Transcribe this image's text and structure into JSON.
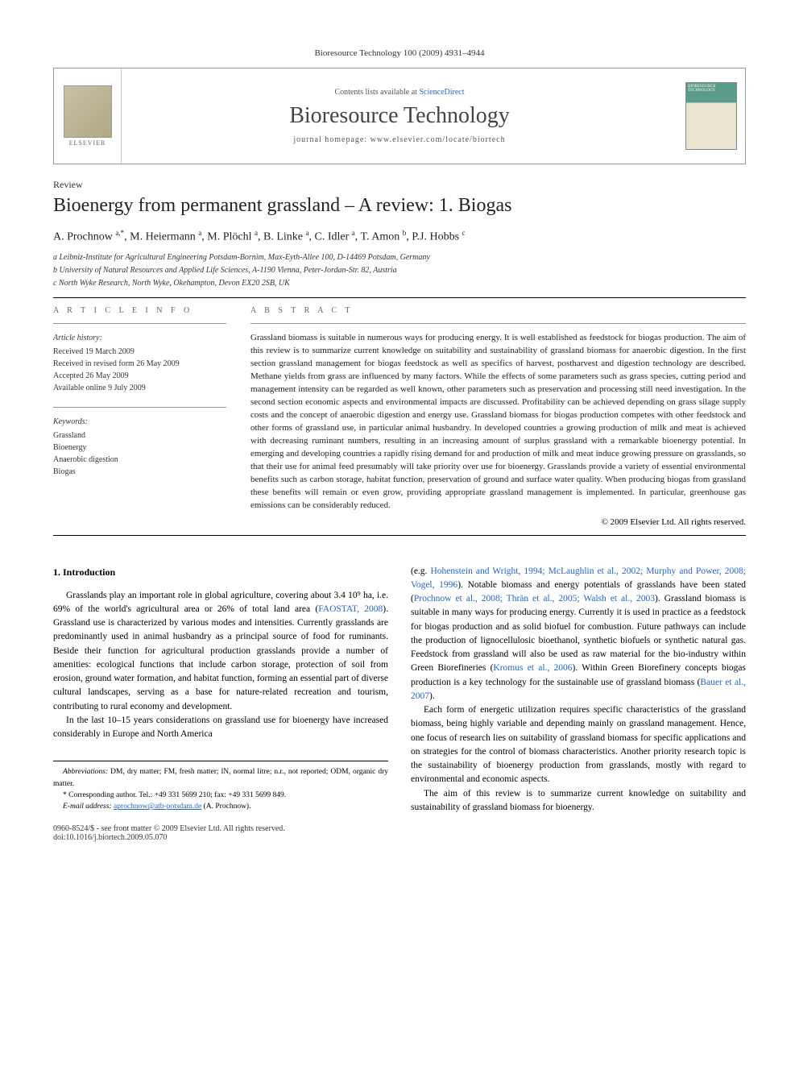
{
  "journal_ref": "Bioresource Technology 100 (2009) 4931–4944",
  "header": {
    "contents_prefix": "Contents lists available at ",
    "contents_link": "ScienceDirect",
    "journal_name": "Bioresource Technology",
    "homepage_prefix": "journal homepage: ",
    "homepage_url": "www.elsevier.com/locate/biortech",
    "publisher": "ELSEVIER",
    "cover_label": "BIORESOURCE TECHNOLOGY"
  },
  "article_type": "Review",
  "title": "Bioenergy from permanent grassland – A review: 1. Biogas",
  "authors_html": "A. Prochnow <sup>a,*</sup>, M. Heiermann <sup>a</sup>, M. Plöchl <sup>a</sup>, B. Linke <sup>a</sup>, C. Idler <sup>a</sup>, T. Amon <sup>b</sup>, P.J. Hobbs <sup>c</sup>",
  "affiliations": {
    "a": "a Leibniz-Institute for Agricultural Engineering Potsdam-Bornim, Max-Eyth-Allee 100, D-14469 Potsdam, Germany",
    "b": "b University of Natural Resources and Applied Life Sciences, A-1190 Vienna, Peter-Jordan-Str. 82, Austria",
    "c": "c North Wyke Research, North Wyke, Okehampton, Devon EX20 2SB, UK"
  },
  "article_info": {
    "label": "A R T I C L E   I N F O",
    "history_label": "Article history:",
    "history": [
      "Received 19 March 2009",
      "Received in revised form 26 May 2009",
      "Accepted 26 May 2009",
      "Available online 9 July 2009"
    ],
    "keywords_label": "Keywords:",
    "keywords": [
      "Grassland",
      "Bioenergy",
      "Anaerobic digestion",
      "Biogas"
    ]
  },
  "abstract": {
    "label": "A B S T R A C T",
    "text": "Grassland biomass is suitable in numerous ways for producing energy. It is well established as feedstock for biogas production. The aim of this review is to summarize current knowledge on suitability and sustainability of grassland biomass for anaerobic digestion. In the first section grassland management for biogas feedstock as well as specifics of harvest, postharvest and digestion technology are described. Methane yields from grass are influenced by many factors. While the effects of some parameters such as grass species, cutting period and management intensity can be regarded as well known, other parameters such as preservation and processing still need investigation. In the second section economic aspects and environmental impacts are discussed. Profitability can be achieved depending on grass silage supply costs and the concept of anaerobic digestion and energy use. Grassland biomass for biogas production competes with other feedstock and other forms of grassland use, in particular animal husbandry. In developed countries a growing production of milk and meat is achieved with decreasing ruminant numbers, resulting in an increasing amount of surplus grassland with a remarkable bioenergy potential. In emerging and developing countries a rapidly rising demand for and production of milk and meat induce growing pressure on grasslands, so that their use for animal feed presumably will take priority over use for bioenergy. Grasslands provide a variety of essential environmental benefits such as carbon storage, habitat function, preservation of ground and surface water quality. When producing biogas from grassland these benefits will remain or even grow, providing appropriate grassland management is implemented. In particular, greenhouse gas emissions can be considerably reduced.",
    "copyright": "© 2009 Elsevier Ltd. All rights reserved."
  },
  "body": {
    "section_heading": "1. Introduction",
    "left_paras": [
      "Grasslands play an important role in global agriculture, covering about 3.4 10⁹ ha, i.e. 69% of the world's agricultural area or 26% of total land area (<span class=\"link\">FAOSTAT, 2008</span>). Grassland use is characterized by various modes and intensities. Currently grasslands are predominantly used in animal husbandry as a principal source of food for ruminants. Beside their function for agricultural production grasslands provide a number of amenities: ecological functions that include carbon storage, protection of soil from erosion, ground water formation, and habitat function, forming an essential part of diverse cultural landscapes, serving as a base for nature-related recreation and tourism, contributing to rural economy and development.",
      "In the last 10–15 years considerations on grassland use for bioenergy have increased considerably in Europe and North America"
    ],
    "right_paras": [
      "(e.g. <span class=\"link\">Hohenstein and Wright, 1994; McLaughlin et al., 2002; Murphy and Power, 2008; Vogel, 1996</span>). Notable biomass and energy potentials of grasslands have been stated (<span class=\"link\">Prochnow et al., 2008; Thrän et al., 2005; Walsh et al., 2003</span>). Grassland biomass is suitable in many ways for producing energy. Currently it is used in practice as a feedstock for biogas production and as solid biofuel for combustion. Future pathways can include the production of lignocellulosic bioethanol, synthetic biofuels or synthetic natural gas. Feedstock from grassland will also be used as raw material for the bio-industry within Green Biorefineries (<span class=\"link\">Kromus et al., 2006</span>). Within Green Biorefinery concepts biogas production is a key technology for the sustainable use of grassland biomass (<span class=\"link\">Bauer et al., 2007</span>).",
      "Each form of energetic utilization requires specific characteristics of the grassland biomass, being highly variable and depending mainly on grassland management. Hence, one focus of research lies on suitability of grassland biomass for specific applications and on strategies for the control of biomass characteristics. Another priority research topic is the sustainability of bioenergy production from grasslands, mostly with regard to environmental and economic aspects.",
      "The aim of this review is to summarize current knowledge on suitability and sustainability of grassland biomass for bioenergy."
    ]
  },
  "footnotes": {
    "abbrev_label": "Abbreviations:",
    "abbrev_text": " DM, dry matter; FM, fresh matter; lN, normal litre; n.r., not reported; ODM, organic dry matter.",
    "corr_label": "* Corresponding author.",
    "corr_text": " Tel.: +49 331 5699 210; fax: +49 331 5699 849.",
    "email_label": "E-mail address:",
    "email": "aprochnow@atb-potsdam.de",
    "email_person": " (A. Prochnow)."
  },
  "footer": {
    "left1": "0960-8524/$ - see front matter © 2009 Elsevier Ltd. All rights reserved.",
    "left2": "doi:10.1016/j.biortech.2009.05.070"
  },
  "colors": {
    "link": "#2566c4",
    "text": "#222222",
    "muted": "#666666",
    "rule": "#000000"
  }
}
